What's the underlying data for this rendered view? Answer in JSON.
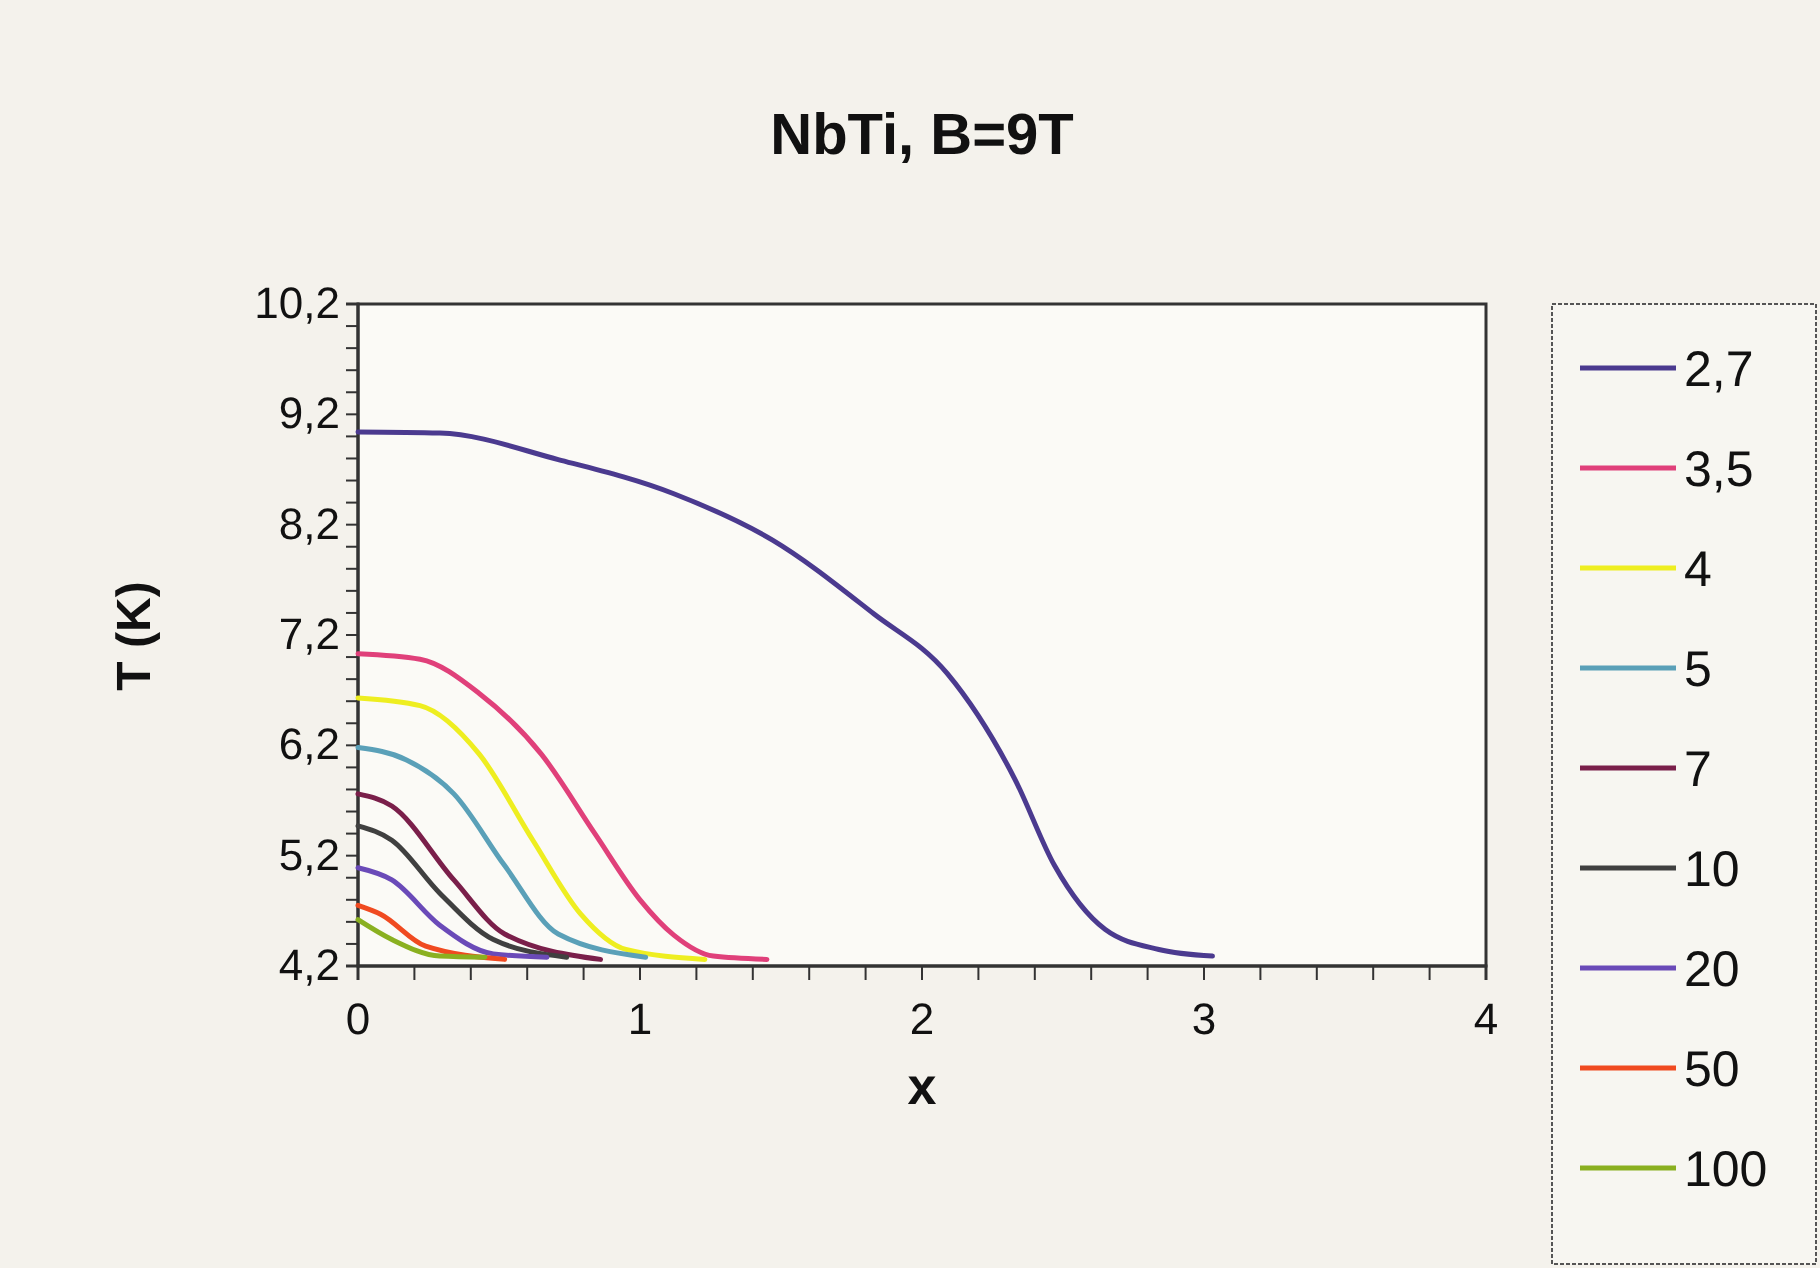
{
  "chart_data": {
    "type": "line",
    "title": "NbTi, B=9T",
    "xlabel": "x",
    "ylabel": "T (K)",
    "xlim": [
      0,
      4
    ],
    "ylim": [
      4.2,
      10.2
    ],
    "xticks": [
      0,
      {
        "value": 0.2,
        "label": null
      },
      {
        "value": 0.4,
        "label": null
      },
      {
        "value": 0.6,
        "label": null
      },
      {
        "value": 0.8,
        "label": null
      },
      1,
      {
        "value": 1.2,
        "label": null
      },
      {
        "value": 1.4,
        "label": null
      },
      {
        "value": 1.6,
        "label": null
      },
      {
        "value": 1.8,
        "label": null
      },
      2,
      {
        "value": 2.2,
        "label": null
      },
      {
        "value": 2.4,
        "label": null
      },
      {
        "value": 2.6,
        "label": null
      },
      {
        "value": 2.8,
        "label": null
      },
      3,
      {
        "value": 3.2,
        "label": null
      },
      {
        "value": 3.4,
        "label": null
      },
      {
        "value": 3.6,
        "label": null
      },
      {
        "value": 3.8,
        "label": null
      },
      4
    ],
    "yticks": [
      {
        "value": 4.2,
        "label": "4,2"
      },
      {
        "value": 4.4,
        "label": null
      },
      {
        "value": 4.6,
        "label": null
      },
      {
        "value": 4.8,
        "label": null
      },
      {
        "value": 5,
        "label": null
      },
      {
        "value": 5.2,
        "label": "5,2"
      },
      {
        "value": 5.4,
        "label": null
      },
      {
        "value": 5.6,
        "label": null
      },
      {
        "value": 5.8,
        "label": null
      },
      {
        "value": 6,
        "label": null
      },
      {
        "value": 6.2,
        "label": "6,2"
      },
      {
        "value": 6.4,
        "label": null
      },
      {
        "value": 6.6,
        "label": null
      },
      {
        "value": 6.8,
        "label": null
      },
      {
        "value": 7,
        "label": null
      },
      {
        "value": 7.2,
        "label": "7,2"
      },
      {
        "value": 7.4,
        "label": null
      },
      {
        "value": 7.6,
        "label": null
      },
      {
        "value": 7.8,
        "label": null
      },
      {
        "value": 8,
        "label": null
      },
      {
        "value": 8.2,
        "label": "8,2"
      },
      {
        "value": 8.4,
        "label": null
      },
      {
        "value": 8.6,
        "label": null
      },
      {
        "value": 8.8,
        "label": null
      },
      {
        "value": 9,
        "label": null
      },
      {
        "value": 9.2,
        "label": "9,2"
      },
      {
        "value": 9.4,
        "label": null
      },
      {
        "value": 9.6,
        "label": null
      },
      {
        "value": 9.8,
        "label": null
      },
      {
        "value": 10,
        "label": null
      },
      {
        "value": 10.2,
        "label": "10,2"
      }
    ],
    "grid": false,
    "legend": "right",
    "marker": "none",
    "line_style": "solid",
    "series": [
      {
        "name": "2,7",
        "color": "#4b3a8f",
        "x": [
          0,
          0.29,
          0.71,
          1.12,
          1.47,
          1.83,
          2.09,
          2.33,
          2.47,
          2.65,
          2.84,
          3.03
        ],
        "values": [
          9.04,
          9.03,
          8.79,
          8.48,
          8.06,
          7.39,
          6.85,
          5.89,
          5.11,
          4.53,
          4.35,
          4.29
        ]
      },
      {
        "name": "3,5",
        "color": "#e0407a",
        "x": [
          0,
          0.22,
          0.43,
          0.65,
          0.84,
          1.0,
          1.12,
          1.26,
          1.45
        ],
        "values": [
          7.03,
          6.98,
          6.67,
          6.12,
          5.4,
          4.8,
          4.48,
          4.29,
          4.26
        ]
      },
      {
        "name": "4",
        "color": "#eeee20",
        "x": [
          0,
          0.22,
          0.43,
          0.62,
          0.79,
          0.95,
          1.23
        ],
        "values": [
          6.63,
          6.56,
          6.12,
          5.34,
          4.67,
          4.35,
          4.26
        ]
      },
      {
        "name": "5",
        "color": "#5aa0b8",
        "x": [
          0,
          0.17,
          0.34,
          0.52,
          0.71,
          1.02
        ],
        "values": [
          6.18,
          6.07,
          5.76,
          5.11,
          4.49,
          4.28
        ]
      },
      {
        "name": "7",
        "color": "#7a1f4a",
        "x": [
          0,
          0.12,
          0.34,
          0.52,
          0.86
        ],
        "values": [
          5.76,
          5.65,
          4.98,
          4.49,
          4.26
        ]
      },
      {
        "name": "10",
        "color": "#404040",
        "x": [
          0,
          0.12,
          0.29,
          0.48,
          0.74
        ],
        "values": [
          5.47,
          5.34,
          4.86,
          4.44,
          4.28
        ]
      },
      {
        "name": "20",
        "color": "#6a4ab8",
        "x": [
          0,
          0.12,
          0.29,
          0.48,
          0.67
        ],
        "values": [
          5.09,
          4.98,
          4.57,
          4.31,
          4.28
        ]
      },
      {
        "name": "50",
        "color": "#f04a20",
        "x": [
          0,
          0.08,
          0.24,
          0.52
        ],
        "values": [
          4.75,
          4.67,
          4.38,
          4.26
        ]
      },
      {
        "name": "100",
        "color": "#8ab020",
        "x": [
          0,
          0.12,
          0.29,
          0.45
        ],
        "values": [
          4.62,
          4.44,
          4.29,
          4.28
        ]
      }
    ]
  }
}
